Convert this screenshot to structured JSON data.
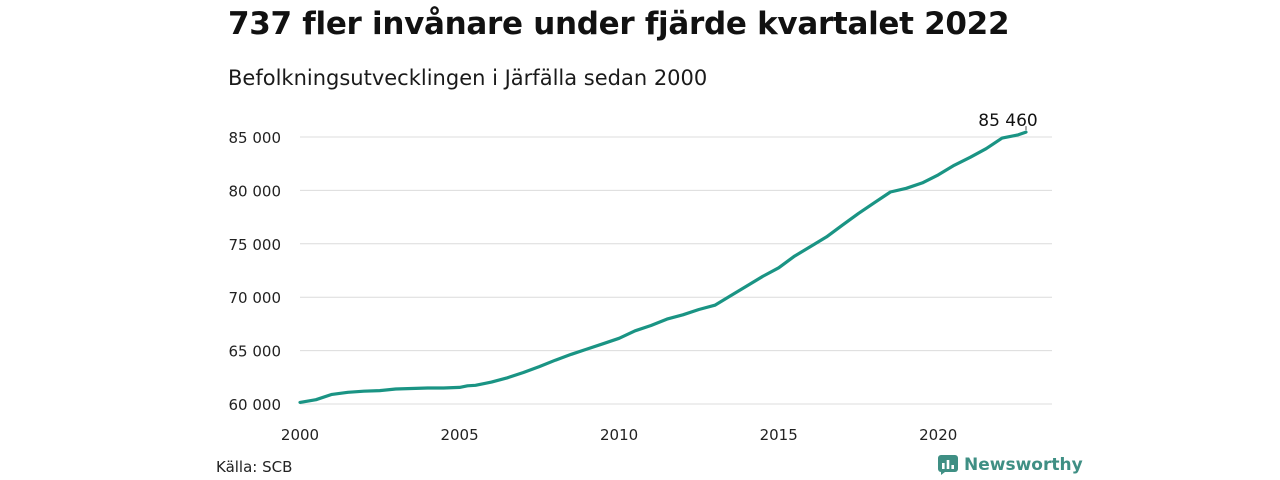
{
  "title": "737 fler invånare under fjärde kvartalet 2022",
  "subtitle": "Befolkningsutvecklingen i Järfälla sedan 2000",
  "source": "Källa: SCB",
  "brand": {
    "name": "Newsworthy",
    "icon": "newsworthy-logo-icon",
    "color": "#3f8f84"
  },
  "chart_data": {
    "type": "line",
    "title": "737 fler invånare under fjärde kvartalet 2022",
    "subtitle": "Befolkningsutvecklingen i Järfälla sedan 2000",
    "xlabel": "",
    "ylabel": "",
    "xlim": [
      2000,
      2022.75
    ],
    "ylim": [
      60000,
      85460
    ],
    "x_ticks": [
      2000,
      2005,
      2010,
      2015,
      2020
    ],
    "x_tick_labels": [
      "2000",
      "2005",
      "2010",
      "2015",
      "2020"
    ],
    "y_ticks": [
      60000,
      65000,
      70000,
      75000,
      80000,
      85000
    ],
    "y_tick_labels": [
      "60 000",
      "65 000",
      "70 000",
      "75 000",
      "80 000",
      "85 000"
    ],
    "grid": true,
    "line_color": "#1a9484",
    "end_label": "85 460",
    "series": [
      {
        "x": [
          2000,
          2000.5,
          2001,
          2001.5,
          2002,
          2002.5,
          2003,
          2003.5,
          2004,
          2004.5,
          2005,
          2005.25,
          2005.5,
          2006,
          2006.5,
          2007,
          2007.5,
          2008,
          2008.5,
          2009,
          2009.5,
          2010,
          2010.5,
          2011,
          2011.5,
          2012,
          2012.5,
          2013,
          2013.5,
          2014,
          2014.5,
          2015,
          2015.5,
          2016,
          2016.5,
          2017,
          2017.5,
          2018,
          2018.5,
          2019,
          2019.5,
          2020,
          2020.5,
          2021,
          2021.5,
          2022,
          2022.5,
          2022.75
        ],
        "values": [
          60150,
          60400,
          60900,
          61100,
          61200,
          61250,
          61400,
          61450,
          61500,
          61500,
          61550,
          61700,
          61750,
          62050,
          62450,
          62950,
          63500,
          64100,
          64650,
          65150,
          65650,
          66150,
          66850,
          67350,
          67950,
          68350,
          68850,
          69250,
          70150,
          71050,
          71950,
          72750,
          73850,
          74750,
          75650,
          76750,
          77850,
          78850,
          79850,
          80200,
          80700,
          81450,
          82350,
          83100,
          83900,
          84900,
          85200,
          85460
        ]
      }
    ]
  }
}
